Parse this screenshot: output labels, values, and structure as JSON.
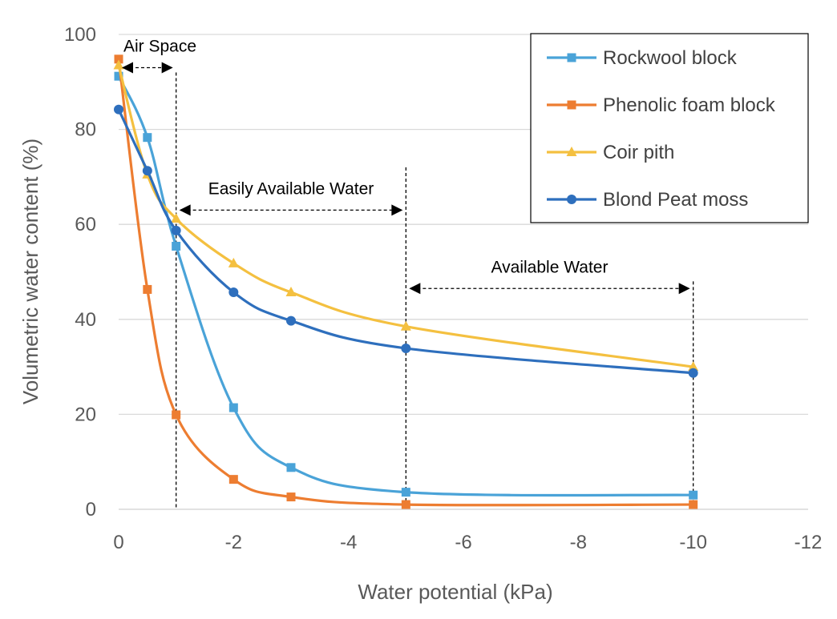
{
  "chart_data": {
    "type": "line",
    "title": "",
    "xlabel": "Water potential (kPa)",
    "ylabel": "Volumetric water content (%)",
    "xlim": [
      0,
      -12
    ],
    "ylim": [
      0,
      100
    ],
    "x_ticks": [
      0,
      -2,
      -4,
      -6,
      -8,
      -10,
      -12
    ],
    "y_ticks": [
      0,
      20,
      40,
      60,
      80,
      100
    ],
    "grid": "horizontal",
    "legend": "top-right",
    "series": [
      {
        "name": "Rockwool block",
        "marker": "square",
        "color": "#4aa3d8",
        "x": [
          0,
          -0.5,
          -1,
          -2,
          -3,
          -5,
          -10
        ],
        "y": [
          91.2,
          78.3,
          55.4,
          21.4,
          8.8,
          3.6,
          3.0
        ]
      },
      {
        "name": "Phenolic foam block",
        "marker": "square",
        "color": "#ed7d31",
        "x": [
          0,
          -0.5,
          -1,
          -2,
          -3,
          -5,
          -10
        ],
        "y": [
          94.8,
          46.3,
          19.9,
          6.3,
          2.6,
          1.0,
          1.0
        ]
      },
      {
        "name": "Coir pith",
        "marker": "triangle",
        "color": "#f4c040",
        "x": [
          0,
          -0.5,
          -1,
          -2,
          -3,
          -5,
          -10
        ],
        "y": [
          93.5,
          70.5,
          61.2,
          51.8,
          45.7,
          38.5,
          30.0
        ]
      },
      {
        "name": "Blond Peat moss",
        "marker": "circle",
        "color": "#2e6fbd",
        "x": [
          0,
          -0.5,
          -1,
          -2,
          -3,
          -5,
          -10
        ],
        "y": [
          84.2,
          71.3,
          58.7,
          45.7,
          39.7,
          33.9,
          28.7
        ]
      }
    ],
    "annotations": [
      {
        "text": "Air Space",
        "x_from": 0,
        "x_to": -1,
        "y": 93
      },
      {
        "text": "Easily Available Water",
        "x_from": -1,
        "x_to": -5,
        "y": 63
      },
      {
        "text": "Available Water",
        "x_from": -5,
        "x_to": -10,
        "y": 46.5
      }
    ],
    "vlines": [
      {
        "x": -1,
        "y_top": 92
      },
      {
        "x": -5,
        "y_top": 72
      },
      {
        "x": -10,
        "y_top": 48
      }
    ]
  }
}
